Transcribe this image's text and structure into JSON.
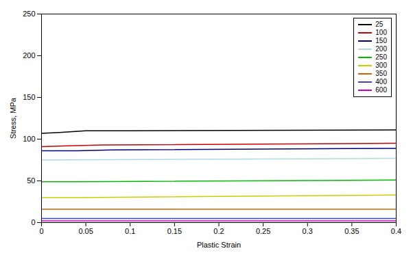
{
  "chart_data": {
    "type": "line",
    "xlabel": "Plastic Strain",
    "ylabel": "Stress, MPa",
    "xlim": [
      0,
      0.4
    ],
    "ylim": [
      0,
      250
    ],
    "xticks": [
      0,
      0.05,
      0.1,
      0.15,
      0.2,
      0.25,
      0.3,
      0.35,
      0.4
    ],
    "yticks": [
      0,
      50,
      100,
      150,
      200,
      250
    ],
    "grid": false,
    "legend": "upper right",
    "series": [
      {
        "name": "25",
        "color": "#000000",
        "x": [
          0,
          0.02,
          0.05,
          0.1,
          0.4
        ],
        "values": [
          107,
          108,
          110,
          110,
          111
        ]
      },
      {
        "name": "100",
        "color": "#cc0000",
        "x": [
          0,
          0.03,
          0.07,
          0.4
        ],
        "values": [
          91,
          92,
          93,
          95
        ]
      },
      {
        "name": "150",
        "color": "#000080",
        "x": [
          0,
          0.04,
          0.08,
          0.4
        ],
        "values": [
          86,
          86,
          87,
          89
        ]
      },
      {
        "name": "200",
        "color": "#add8e6",
        "x": [
          0,
          0.4
        ],
        "values": [
          75,
          77
        ]
      },
      {
        "name": "250",
        "color": "#00bb00",
        "x": [
          0,
          0.04,
          0.4
        ],
        "values": [
          49,
          49,
          51
        ]
      },
      {
        "name": "300",
        "color": "#cccc00",
        "x": [
          0,
          0.04,
          0.4
        ],
        "values": [
          30,
          30,
          33
        ]
      },
      {
        "name": "350",
        "color": "#cc6600",
        "x": [
          0,
          0.09,
          0.4
        ],
        "values": [
          16,
          16,
          16
        ]
      },
      {
        "name": "400",
        "color": "#4040cc",
        "x": [
          0,
          0.4
        ],
        "values": [
          5,
          5
        ]
      },
      {
        "name": "600",
        "color": "#cc00cc",
        "x": [
          0,
          0.4
        ],
        "values": [
          2,
          2
        ]
      }
    ]
  }
}
